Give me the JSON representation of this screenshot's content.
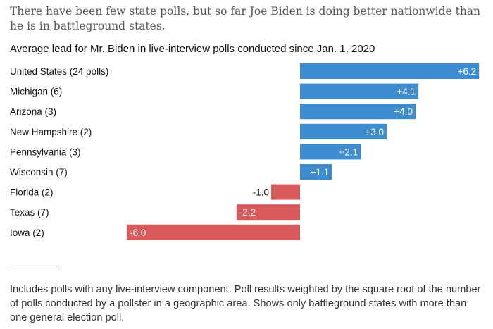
{
  "subtitle": "There have been few state polls, but so far Joe Biden is doing better nationwide than he is in battleground states.",
  "chart_data": {
    "type": "bar",
    "orientation": "horizontal",
    "title": "Average lead for Mr. Biden in live-interview polls conducted since Jan. 1, 2020",
    "categories": [
      "United States (24 polls)",
      "Michigan (6)",
      "Arizona (3)",
      "New Hampshire (2)",
      "Pennsylvania (3)",
      "Wisconsin (7)",
      "Florida (2)",
      "Texas (7)",
      "Iowa (2)"
    ],
    "values": [
      6.2,
      4.1,
      4.0,
      3.0,
      2.1,
      1.1,
      -1.0,
      -2.2,
      -6.0
    ],
    "value_labels": [
      "+6.2",
      "+4.1",
      "+4.0",
      "+3.0",
      "+2.1",
      "+1.1",
      "-1.0",
      "-2.2",
      "-6.0"
    ],
    "colors": {
      "positive": "#3d8ccf",
      "negative": "#d95a5a"
    },
    "xlim": [
      -6.2,
      6.2
    ]
  },
  "note": "Includes polls with any live-interview component. Poll results weighted by the square root of the number of polls conducted by a pollster in a geographic area. Shows only battleground states with more than one general election poll."
}
